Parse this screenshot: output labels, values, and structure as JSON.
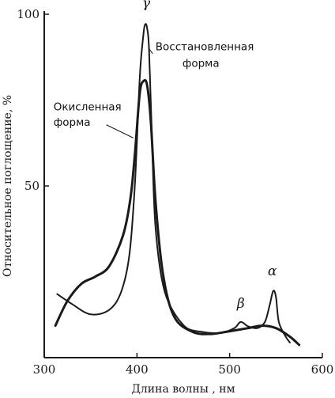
{
  "chart_data": {
    "type": "line",
    "xlabel": "Длина волны , нм",
    "ylabel": "Относительное поглощение, %",
    "xlim": [
      300,
      600
    ],
    "ylim": [
      0,
      100
    ],
    "x_ticks": [
      "300",
      "400",
      "500",
      "600"
    ],
    "y_ticks": [
      "50",
      "100"
    ],
    "grid": false,
    "series": [
      {
        "name": "Восстановленная форма",
        "color": "#1a1a1a",
        "points": [
          [
            314,
            18.5
          ],
          [
            330,
            15.6
          ],
          [
            350,
            12.6
          ],
          [
            370,
            13.9
          ],
          [
            383,
            19.2
          ],
          [
            392,
            30.2
          ],
          [
            398,
            51.5
          ],
          [
            403,
            81.6
          ],
          [
            407,
            94.1
          ],
          [
            409,
            97.1
          ],
          [
            411,
            95.9
          ],
          [
            413,
            90.0
          ],
          [
            416,
            66.0
          ],
          [
            420,
            38.0
          ],
          [
            430,
            19.2
          ],
          [
            450,
            9.5
          ],
          [
            470,
            7.5
          ],
          [
            490,
            7.2
          ],
          [
            505,
            8.6
          ],
          [
            512,
            10.4
          ],
          [
            520,
            9.1
          ],
          [
            530,
            8.6
          ],
          [
            538,
            10.4
          ],
          [
            543,
            15.1
          ],
          [
            547,
            19.4
          ],
          [
            550,
            17.6
          ],
          [
            553,
            10.4
          ],
          [
            560,
            6.3
          ],
          [
            565,
            4.4
          ]
        ]
      },
      {
        "name": "Окисленная форма",
        "color": "#1a1a1a",
        "points": [
          [
            312,
            9.3
          ],
          [
            325,
            16.5
          ],
          [
            340,
            21.5
          ],
          [
            355,
            23.6
          ],
          [
            370,
            26.6
          ],
          [
            385,
            35.6
          ],
          [
            393,
            46.4
          ],
          [
            398,
            60.0
          ],
          [
            403,
            77.0
          ],
          [
            407,
            80.5
          ],
          [
            411,
            79.3
          ],
          [
            415,
            68.7
          ],
          [
            420,
            45.7
          ],
          [
            428,
            24.5
          ],
          [
            440,
            12.0
          ],
          [
            460,
            7.5
          ],
          [
            480,
            6.9
          ],
          [
            500,
            7.7
          ],
          [
            520,
            8.6
          ],
          [
            535,
            9.3
          ],
          [
            550,
            8.6
          ],
          [
            565,
            6.1
          ],
          [
            575,
            3.7
          ]
        ]
      }
    ],
    "annotations": [
      {
        "text": "γ",
        "x": 410,
        "y": 102
      },
      {
        "text": "β",
        "x": 512,
        "y": 14.5
      },
      {
        "text": "α",
        "x": 546,
        "y": 24
      },
      {
        "text": "Восстановленная",
        "x": 420,
        "y": 89.5,
        "series": 0
      },
      {
        "text": "форма",
        "x": 449,
        "y": 84.7,
        "series": 0
      },
      {
        "text": "Окисленная",
        "x": 310,
        "y": 72
      },
      {
        "text": "форма",
        "x": 310,
        "y": 67.5
      }
    ]
  }
}
